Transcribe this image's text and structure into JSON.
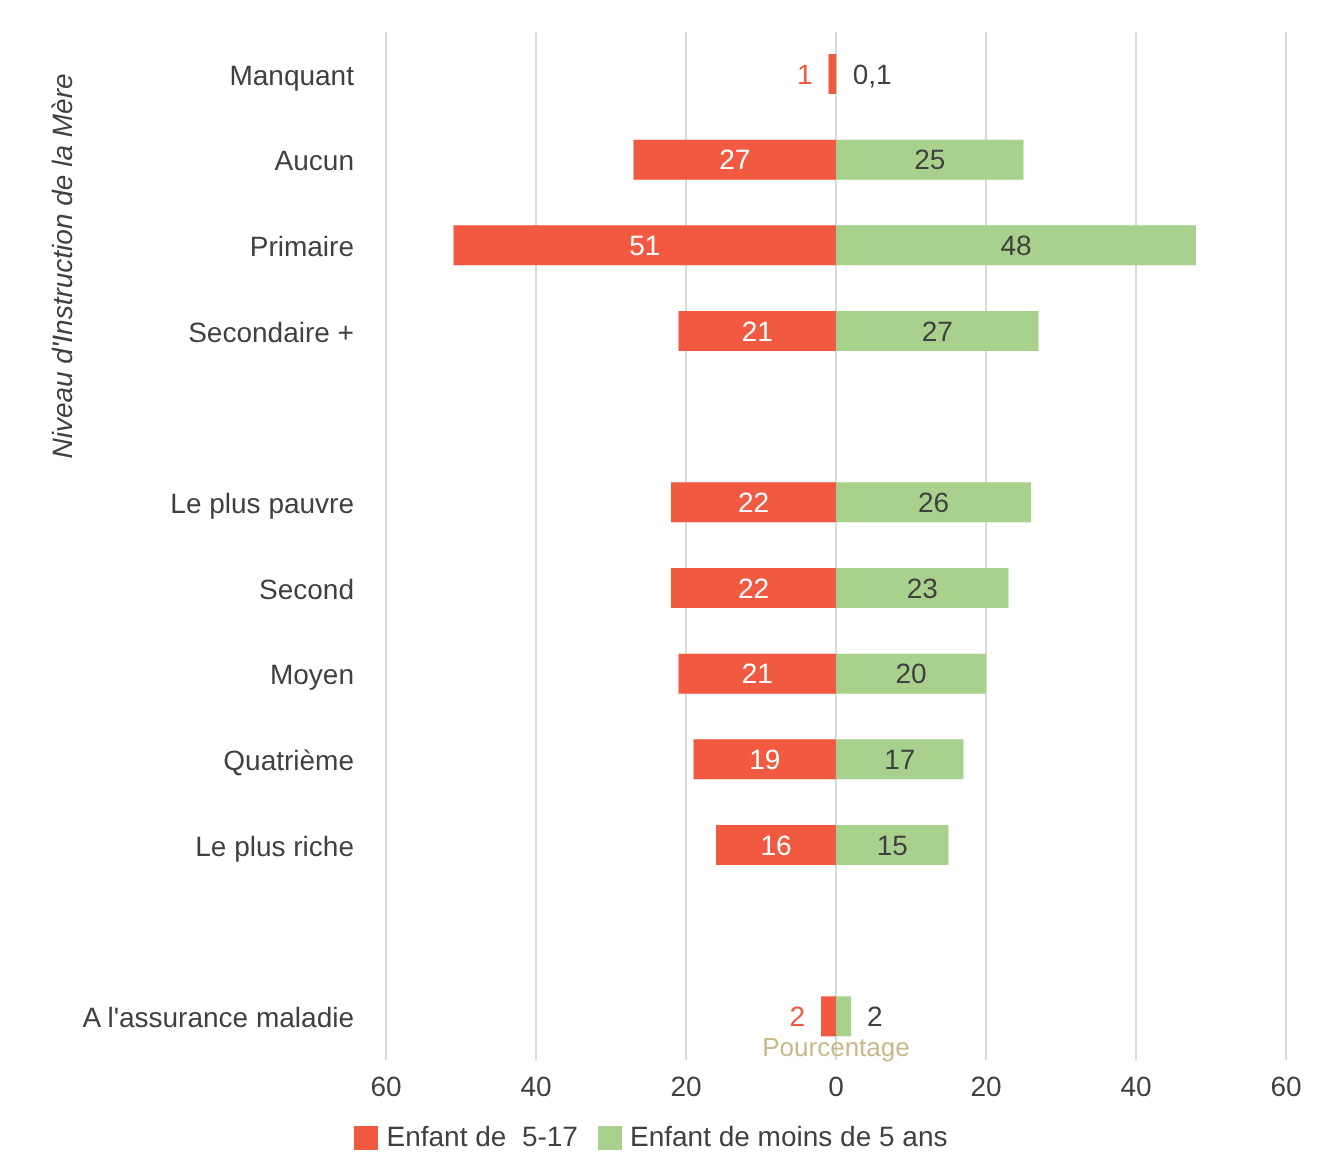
{
  "chart_data": {
    "type": "bar",
    "orientation": "horizontal",
    "ylabel": "Niveau d'Instruction de la Mère",
    "xlabel": "Pourcentage",
    "categories": [
      "Manquant",
      "Aucun",
      "Primaire",
      "Secondaire +",
      null,
      "Le plus pauvre",
      "Second",
      "Moyen",
      "Quatrième",
      "Le plus riche",
      null,
      "A l'assurance maladie"
    ],
    "series": [
      {
        "name": "Enfant de  5-17",
        "color": "#f15a40",
        "values": [
          1,
          27,
          51,
          21,
          null,
          22,
          22,
          21,
          19,
          16,
          null,
          2
        ],
        "base": [
          -1,
          -27,
          -51,
          -21,
          null,
          -22,
          -22,
          -21,
          -19,
          -16,
          null,
          -2
        ],
        "value_labels": [
          "1",
          "27",
          "51",
          "21",
          null,
          "22",
          "22",
          "21",
          "19",
          "16",
          null,
          "2"
        ]
      },
      {
        "name": "Enfant de moins de 5 ans",
        "color": "#a9d18e",
        "values": [
          0.1,
          25,
          48,
          27,
          null,
          26,
          23,
          20,
          17,
          15,
          null,
          2
        ],
        "value_labels": [
          "0,1",
          "25",
          "48",
          "27",
          null,
          "26",
          "23",
          "20",
          "17",
          "15",
          null,
          "2"
        ]
      }
    ],
    "xlim": [
      -60,
      60
    ],
    "xticks": [
      {
        "value": -60,
        "label": "60"
      },
      {
        "value": -40,
        "label": "40"
      },
      {
        "value": -20,
        "label": "20"
      },
      0,
      20,
      40,
      60
    ],
    "grid": "x",
    "legend": "bottom"
  }
}
